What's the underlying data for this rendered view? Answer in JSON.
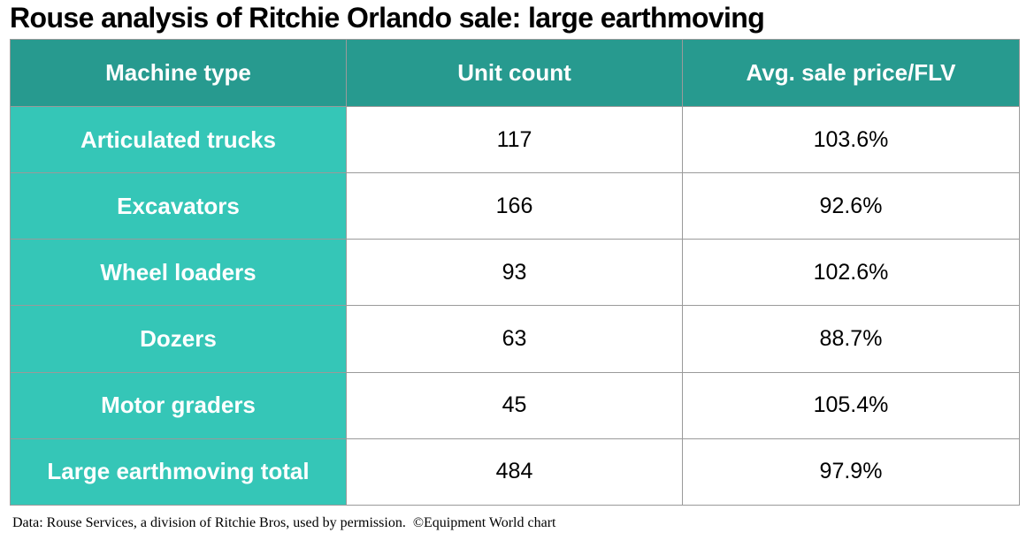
{
  "chart_data": {
    "type": "table",
    "title": "Rouse analysis of Ritchie Orlando sale: large earthmoving",
    "columns": [
      "Machine type",
      "Unit count",
      "Avg. sale price/FLV"
    ],
    "rows": [
      {
        "machine_type": "Articulated trucks",
        "unit_count": "117",
        "avg_price_flv": "103.6%"
      },
      {
        "machine_type": "Excavators",
        "unit_count": "166",
        "avg_price_flv": "92.6%"
      },
      {
        "machine_type": "Wheel loaders",
        "unit_count": "93",
        "avg_price_flv": "102.6%"
      },
      {
        "machine_type": "Dozers",
        "unit_count": "63",
        "avg_price_flv": "88.7%"
      },
      {
        "machine_type": "Motor graders",
        "unit_count": "45",
        "avg_price_flv": "105.4%"
      },
      {
        "machine_type": "Large earthmoving total",
        "unit_count": "484",
        "avg_price_flv": "97.9%"
      }
    ],
    "footnote": "Data: Rouse Services, a division of Ritchie Bros, used by permission.  ©Equipment World chart"
  },
  "colors": {
    "header_bg": "#279a8f",
    "row_label_bg": "#35c6b7",
    "border": "#9a9a9a",
    "cell_bg": "#ffffff"
  }
}
